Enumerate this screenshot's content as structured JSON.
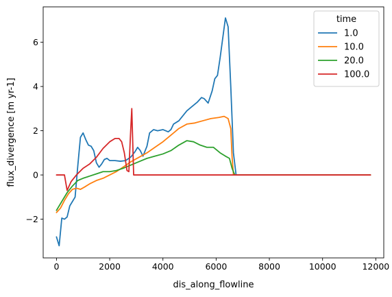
{
  "chart_data": {
    "type": "line",
    "xlabel": "dis_along_flowline",
    "ylabel": "flux_divergence [m yr-1]",
    "xlim": [
      -500,
      12300
    ],
    "ylim": [
      -3.75,
      7.6
    ],
    "x_ticks": [
      0,
      2000,
      4000,
      6000,
      8000,
      10000,
      12000
    ],
    "y_ticks": [
      -2,
      0,
      2,
      4,
      6
    ],
    "legend_title": "time",
    "legend_position": "top-right",
    "grid": false,
    "series": [
      {
        "name": "1.0",
        "color": "#1f77b4",
        "points": [
          [
            0,
            -2.8
          ],
          [
            100,
            -3.2
          ],
          [
            200,
            -1.95
          ],
          [
            300,
            -2.0
          ],
          [
            400,
            -1.9
          ],
          [
            500,
            -1.4
          ],
          [
            600,
            -1.2
          ],
          [
            700,
            -1.0
          ],
          [
            800,
            0.4
          ],
          [
            900,
            1.7
          ],
          [
            1000,
            1.9
          ],
          [
            1100,
            1.6
          ],
          [
            1200,
            1.35
          ],
          [
            1300,
            1.3
          ],
          [
            1400,
            1.1
          ],
          [
            1500,
            0.55
          ],
          [
            1600,
            0.35
          ],
          [
            1700,
            0.5
          ],
          [
            1800,
            0.7
          ],
          [
            1900,
            0.75
          ],
          [
            2000,
            0.65
          ],
          [
            2200,
            0.65
          ],
          [
            2400,
            0.62
          ],
          [
            2600,
            0.65
          ],
          [
            2800,
            0.82
          ],
          [
            2950,
            1.05
          ],
          [
            3050,
            1.25
          ],
          [
            3150,
            1.1
          ],
          [
            3250,
            0.85
          ],
          [
            3400,
            1.3
          ],
          [
            3500,
            1.9
          ],
          [
            3650,
            2.05
          ],
          [
            3800,
            2.0
          ],
          [
            4000,
            2.05
          ],
          [
            4100,
            2.0
          ],
          [
            4200,
            1.95
          ],
          [
            4300,
            2.05
          ],
          [
            4400,
            2.3
          ],
          [
            4600,
            2.45
          ],
          [
            4700,
            2.6
          ],
          [
            4900,
            2.9
          ],
          [
            5100,
            3.1
          ],
          [
            5300,
            3.3
          ],
          [
            5450,
            3.5
          ],
          [
            5550,
            3.45
          ],
          [
            5700,
            3.25
          ],
          [
            5850,
            3.8
          ],
          [
            5950,
            4.35
          ],
          [
            6050,
            4.5
          ],
          [
            6150,
            5.3
          ],
          [
            6250,
            6.2
          ],
          [
            6350,
            7.1
          ],
          [
            6450,
            6.7
          ],
          [
            6550,
            4.0
          ],
          [
            6650,
            1.0
          ],
          [
            6750,
            0.0
          ],
          [
            8000,
            0.0
          ],
          [
            10000,
            0.0
          ],
          [
            11800,
            0.0
          ]
        ]
      },
      {
        "name": "10.0",
        "color": "#ff7f0e",
        "points": [
          [
            0,
            -1.7
          ],
          [
            150,
            -1.5
          ],
          [
            300,
            -1.15
          ],
          [
            450,
            -0.85
          ],
          [
            600,
            -0.65
          ],
          [
            750,
            -0.6
          ],
          [
            900,
            -0.65
          ],
          [
            1050,
            -0.55
          ],
          [
            1250,
            -0.4
          ],
          [
            1500,
            -0.25
          ],
          [
            1750,
            -0.15
          ],
          [
            2000,
            0.0
          ],
          [
            2250,
            0.15
          ],
          [
            2500,
            0.35
          ],
          [
            2800,
            0.6
          ],
          [
            3100,
            0.8
          ],
          [
            3400,
            1.0
          ],
          [
            3700,
            1.25
          ],
          [
            4000,
            1.5
          ],
          [
            4300,
            1.8
          ],
          [
            4600,
            2.1
          ],
          [
            4900,
            2.3
          ],
          [
            5200,
            2.35
          ],
          [
            5500,
            2.45
          ],
          [
            5800,
            2.55
          ],
          [
            6100,
            2.6
          ],
          [
            6300,
            2.65
          ],
          [
            6450,
            2.55
          ],
          [
            6550,
            2.1
          ],
          [
            6600,
            0.8
          ],
          [
            6650,
            0.0
          ],
          [
            8000,
            0.0
          ],
          [
            10000,
            0.0
          ],
          [
            11800,
            0.0
          ]
        ]
      },
      {
        "name": "20.0",
        "color": "#2ca02c",
        "points": [
          [
            0,
            -1.6
          ],
          [
            200,
            -1.2
          ],
          [
            400,
            -0.8
          ],
          [
            600,
            -0.5
          ],
          [
            800,
            -0.25
          ],
          [
            1000,
            -0.15
          ],
          [
            1250,
            -0.05
          ],
          [
            1500,
            0.05
          ],
          [
            1750,
            0.15
          ],
          [
            2000,
            0.15
          ],
          [
            2250,
            0.2
          ],
          [
            2500,
            0.3
          ],
          [
            2800,
            0.45
          ],
          [
            3100,
            0.6
          ],
          [
            3400,
            0.75
          ],
          [
            3700,
            0.85
          ],
          [
            4000,
            0.95
          ],
          [
            4300,
            1.1
          ],
          [
            4600,
            1.35
          ],
          [
            4900,
            1.55
          ],
          [
            5150,
            1.5
          ],
          [
            5400,
            1.35
          ],
          [
            5650,
            1.25
          ],
          [
            5900,
            1.25
          ],
          [
            6150,
            1.0
          ],
          [
            6350,
            0.85
          ],
          [
            6500,
            0.75
          ],
          [
            6600,
            0.3
          ],
          [
            6700,
            0.0
          ],
          [
            8000,
            0.0
          ],
          [
            10000,
            0.0
          ],
          [
            11800,
            0.0
          ]
        ]
      },
      {
        "name": "100.0",
        "color": "#d62728",
        "points": [
          [
            0,
            0.0
          ],
          [
            150,
            0.0
          ],
          [
            300,
            0.0
          ],
          [
            400,
            -0.7
          ],
          [
            550,
            -0.3
          ],
          [
            750,
            0.0
          ],
          [
            1000,
            0.3
          ],
          [
            1250,
            0.5
          ],
          [
            1500,
            0.8
          ],
          [
            1750,
            1.2
          ],
          [
            2000,
            1.5
          ],
          [
            2200,
            1.65
          ],
          [
            2350,
            1.65
          ],
          [
            2450,
            1.5
          ],
          [
            2550,
            1.0
          ],
          [
            2650,
            0.2
          ],
          [
            2720,
            0.15
          ],
          [
            2780,
            1.8
          ],
          [
            2830,
            3.0
          ],
          [
            2900,
            0.0
          ],
          [
            3500,
            0.0
          ],
          [
            5000,
            0.0
          ],
          [
            8000,
            0.0
          ],
          [
            10000,
            0.0
          ],
          [
            11800,
            0.0
          ]
        ]
      }
    ]
  }
}
